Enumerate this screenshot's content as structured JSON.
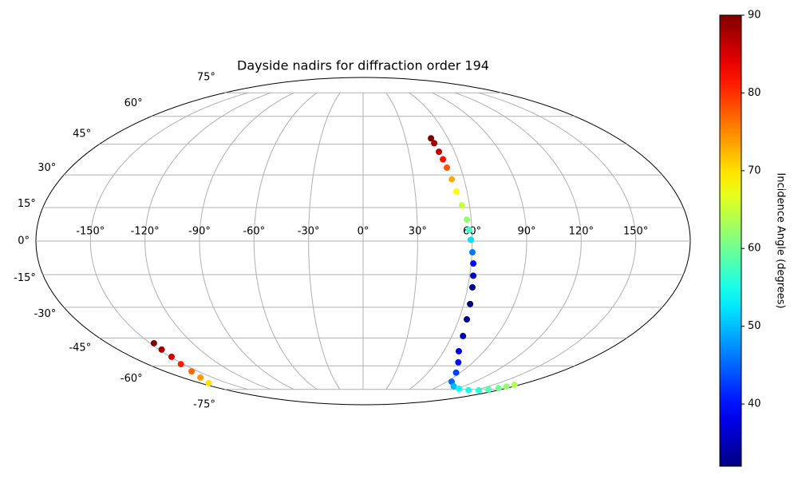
{
  "chart_data": {
    "type": "scatter",
    "projection": "mollweide",
    "title": "Dayside nadirs for diffraction order 194",
    "xlim": [
      -180,
      180
    ],
    "ylim": [
      -90,
      90
    ],
    "xticks": [
      {
        "value": -150,
        "label": "-150°"
      },
      {
        "value": -120,
        "label": "-120°"
      },
      {
        "value": -90,
        "label": "-90°"
      },
      {
        "value": -60,
        "label": "-60°"
      },
      {
        "value": -30,
        "label": "-30°"
      },
      {
        "value": 0,
        "label": "0°"
      },
      {
        "value": 30,
        "label": "30°"
      },
      {
        "value": 60,
        "label": "60°"
      },
      {
        "value": 90,
        "label": "90°"
      },
      {
        "value": 120,
        "label": "120°"
      },
      {
        "value": 150,
        "label": "150°"
      }
    ],
    "yticks": [
      {
        "value": -75,
        "label": "-75°"
      },
      {
        "value": -60,
        "label": "-60°"
      },
      {
        "value": -45,
        "label": "-45°"
      },
      {
        "value": -30,
        "label": "-30°"
      },
      {
        "value": -15,
        "label": "-15°"
      },
      {
        "value": 0,
        "label": "0°"
      },
      {
        "value": 15,
        "label": "15°"
      },
      {
        "value": 30,
        "label": "30°"
      },
      {
        "value": 45,
        "label": "45°"
      },
      {
        "value": 60,
        "label": "60°"
      },
      {
        "value": 75,
        "label": "75°"
      }
    ],
    "grid": true,
    "meridian_lat_limit": 75,
    "series": [
      {
        "x": [
          48.0,
          48.8,
          49.8,
          50.7,
          51.6,
          52.7,
          53.9,
          55.7,
          57.6,
          58.5,
          59.3,
          60.3,
          61.2,
          62.0,
          62.7,
          63.8,
          65.0,
          67.5,
          71.2,
          78.0,
          86.0,
          95.2,
          108.0,
          122.0,
          140.0,
          155.0,
          163.0,
          169.6,
          172.0,
          174.0,
          -147.3,
          -148.0,
          -149.0,
          -152.0,
          -155.7,
          -162.0,
          -170.8
        ],
        "y": [
          48.0,
          45.5,
          41.2,
          37.5,
          33.5,
          28.0,
          22.3,
          16.0,
          9.6,
          5.0,
          0.6,
          -5.0,
          -10.0,
          -15.5,
          -20.8,
          -28.5,
          -35.8,
          -44.0,
          -51.9,
          -58.0,
          -64.0,
          -69.7,
          -72.8,
          -74.5,
          -75.5,
          -75.7,
          -75.0,
          -74.1,
          -73.0,
          -71.8,
          -47.7,
          -51.0,
          -54.9,
          -59.0,
          -63.2,
          -67.0,
          -70.6
        ],
        "c": [
          90,
          88,
          86,
          82,
          78,
          73,
          68,
          65,
          62,
          57,
          52,
          46,
          40,
          36,
          33,
          32,
          33,
          35,
          38,
          40,
          43,
          45,
          50,
          54,
          55,
          56,
          58,
          60,
          62,
          64,
          90,
          88,
          85,
          81,
          77,
          74,
          70
        ]
      }
    ],
    "colormap": "jet",
    "colorbar": {
      "label": "Incidence Angle (degrees)",
      "clim": [
        32,
        90
      ],
      "ticks": [
        40,
        50,
        60,
        70,
        80,
        90
      ]
    }
  }
}
